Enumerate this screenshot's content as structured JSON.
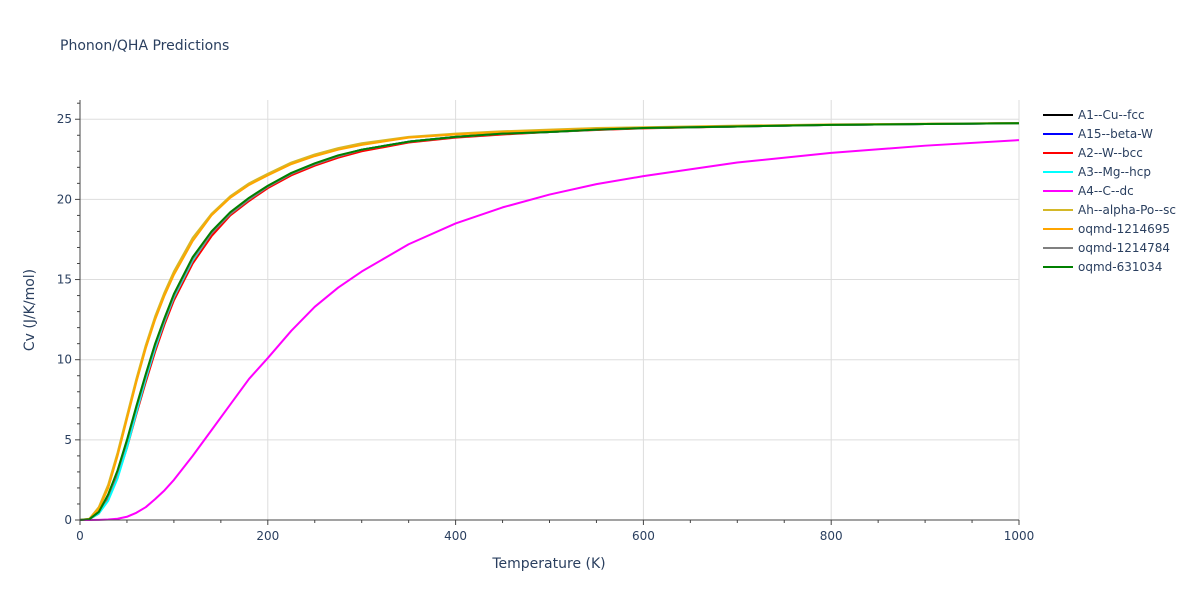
{
  "chart_data": {
    "type": "line",
    "title": "Phonon/QHA Predictions",
    "xlabel": "Temperature (K)",
    "ylabel": "Cv (J/K/mol)",
    "xlim": [
      0,
      1000
    ],
    "ylim": [
      0,
      26.2
    ],
    "x_ticks": [
      0,
      200,
      400,
      600,
      800,
      1000
    ],
    "x_tick_labels": [
      "0",
      "200",
      "400",
      "600",
      "800",
      "1000"
    ],
    "y_ticks": [
      0,
      5,
      10,
      15,
      20,
      25
    ],
    "y_tick_labels": [
      "0",
      "5",
      "10",
      "15",
      "20",
      "25"
    ],
    "grid": true,
    "legend_position": "right",
    "x": [
      0,
      10,
      20,
      30,
      40,
      50,
      60,
      70,
      80,
      90,
      100,
      120,
      140,
      160,
      180,
      200,
      225,
      250,
      275,
      300,
      350,
      400,
      450,
      500,
      550,
      600,
      700,
      800,
      900,
      1000
    ],
    "series": [
      {
        "name": "A1--Cu--fcc",
        "color": "#000000",
        "values": [
          0,
          0.05,
          0.5,
          1.5,
          3.0,
          4.9,
          7.0,
          9.0,
          10.9,
          12.5,
          14.0,
          16.3,
          17.9,
          19.1,
          20.0,
          20.8,
          21.6,
          22.2,
          22.7,
          23.1,
          23.6,
          23.9,
          24.1,
          24.2,
          24.35,
          24.45,
          24.55,
          24.65,
          24.7,
          24.75
        ]
      },
      {
        "name": "A15--beta-W",
        "color": "#0000ff",
        "values": [
          0,
          0.05,
          0.5,
          1.5,
          3.0,
          4.9,
          7.0,
          9.0,
          10.9,
          12.5,
          14.0,
          16.3,
          17.9,
          19.1,
          20.0,
          20.8,
          21.6,
          22.2,
          22.7,
          23.1,
          23.6,
          23.9,
          24.1,
          24.2,
          24.35,
          24.45,
          24.55,
          24.65,
          24.7,
          24.75
        ]
      },
      {
        "name": "A2--W--bcc",
        "color": "#ff0000",
        "values": [
          0,
          0.05,
          0.4,
          1.3,
          2.7,
          4.5,
          6.6,
          8.6,
          10.5,
          12.2,
          13.7,
          16.0,
          17.7,
          19.0,
          19.9,
          20.7,
          21.5,
          22.1,
          22.6,
          23.0,
          23.55,
          23.85,
          24.05,
          24.2,
          24.33,
          24.43,
          24.55,
          24.65,
          24.7,
          24.75
        ]
      },
      {
        "name": "A3--Mg--hcp",
        "color": "#00ffff",
        "values": [
          0,
          0.05,
          0.4,
          1.2,
          2.6,
          4.5,
          6.7,
          8.8,
          10.7,
          12.4,
          13.9,
          16.2,
          17.9,
          19.1,
          20.0,
          20.8,
          21.6,
          22.2,
          22.7,
          23.1,
          23.6,
          23.9,
          24.1,
          24.2,
          24.35,
          24.45,
          24.55,
          24.65,
          24.7,
          24.75
        ]
      },
      {
        "name": "A4--C--dc",
        "color": "#ff00ff",
        "values": [
          0,
          0.0,
          0.01,
          0.03,
          0.08,
          0.2,
          0.45,
          0.8,
          1.3,
          1.85,
          2.5,
          4.0,
          5.6,
          7.2,
          8.8,
          10.1,
          11.8,
          13.3,
          14.5,
          15.5,
          17.2,
          18.5,
          19.5,
          20.3,
          20.95,
          21.45,
          22.3,
          22.9,
          23.35,
          23.7
        ]
      },
      {
        "name": "Ah--alpha-Po--sc",
        "color": "#d4b828",
        "values": [
          0,
          0.08,
          0.8,
          2.2,
          4.2,
          6.5,
          8.8,
          10.9,
          12.7,
          14.2,
          15.5,
          17.6,
          19.1,
          20.2,
          21.0,
          21.6,
          22.3,
          22.8,
          23.2,
          23.5,
          23.9,
          24.1,
          24.25,
          24.35,
          24.45,
          24.5,
          24.6,
          24.68,
          24.72,
          24.76
        ]
      },
      {
        "name": "oqmd-1214695",
        "color": "#ffa500",
        "values": [
          0,
          0.07,
          0.7,
          2.0,
          4.0,
          6.3,
          8.6,
          10.7,
          12.5,
          14.0,
          15.3,
          17.4,
          19.0,
          20.1,
          20.9,
          21.5,
          22.2,
          22.7,
          23.1,
          23.4,
          23.85,
          24.05,
          24.2,
          24.3,
          24.4,
          24.47,
          24.57,
          24.66,
          24.71,
          24.76
        ]
      },
      {
        "name": "oqmd-1214784",
        "color": "#808080",
        "values": [
          0,
          0.05,
          0.5,
          1.5,
          3.0,
          4.9,
          7.0,
          9.0,
          10.9,
          12.5,
          14.0,
          16.3,
          17.9,
          19.1,
          20.0,
          20.8,
          21.6,
          22.2,
          22.7,
          23.1,
          23.6,
          23.9,
          24.1,
          24.2,
          24.35,
          24.45,
          24.55,
          24.65,
          24.7,
          24.75
        ]
      },
      {
        "name": "oqmd-631034",
        "color": "#008000",
        "values": [
          0,
          0.05,
          0.5,
          1.6,
          3.1,
          5.0,
          7.1,
          9.1,
          11.0,
          12.6,
          14.1,
          16.4,
          18.0,
          19.2,
          20.1,
          20.85,
          21.65,
          22.25,
          22.75,
          23.1,
          23.6,
          23.9,
          24.1,
          24.2,
          24.35,
          24.45,
          24.55,
          24.65,
          24.7,
          24.75
        ]
      }
    ]
  }
}
